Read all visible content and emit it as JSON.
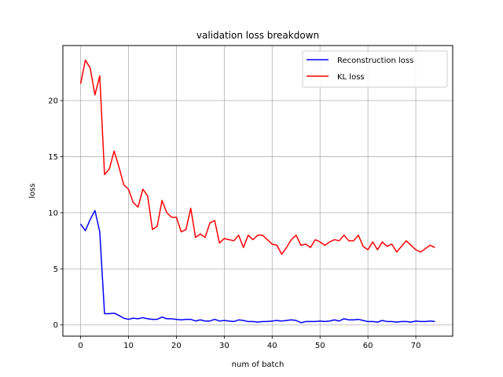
{
  "chart_data": {
    "type": "line",
    "title": "validation loss breakdown",
    "xlabel": "num of batch",
    "ylabel": "loss",
    "xlim": [
      -3.7,
      77.7
    ],
    "ylim": [
      -1.0,
      24.9
    ],
    "xticks": [
      0,
      10,
      20,
      30,
      40,
      50,
      60,
      70
    ],
    "yticks": [
      0,
      5,
      10,
      15,
      20
    ],
    "grid": true,
    "legend_position": "top-right",
    "series": [
      {
        "name": "Reconstruction loss",
        "color": "#0000ff",
        "x": [
          0,
          1,
          2,
          3,
          4,
          5,
          6,
          7,
          8,
          9,
          10,
          11,
          12,
          13,
          14,
          15,
          16,
          17,
          18,
          19,
          20,
          21,
          22,
          23,
          24,
          25,
          26,
          27,
          28,
          29,
          30,
          31,
          32,
          33,
          34,
          35,
          36,
          37,
          38,
          39,
          40,
          41,
          42,
          43,
          44,
          45,
          46,
          47,
          48,
          49,
          50,
          51,
          52,
          53,
          54,
          55,
          56,
          57,
          58,
          59,
          60,
          61,
          62,
          63,
          64,
          65,
          66,
          67,
          68,
          69,
          70,
          71,
          72,
          73,
          74
        ],
        "values": [
          9.0,
          8.4,
          9.4,
          10.2,
          8.3,
          1.0,
          1.0,
          1.05,
          0.85,
          0.6,
          0.5,
          0.6,
          0.55,
          0.65,
          0.55,
          0.5,
          0.5,
          0.7,
          0.55,
          0.55,
          0.5,
          0.45,
          0.5,
          0.5,
          0.35,
          0.45,
          0.35,
          0.35,
          0.5,
          0.35,
          0.4,
          0.35,
          0.3,
          0.45,
          0.4,
          0.3,
          0.3,
          0.25,
          0.3,
          0.3,
          0.35,
          0.4,
          0.35,
          0.4,
          0.45,
          0.4,
          0.2,
          0.3,
          0.3,
          0.3,
          0.35,
          0.3,
          0.35,
          0.45,
          0.35,
          0.55,
          0.45,
          0.45,
          0.5,
          0.4,
          0.3,
          0.3,
          0.25,
          0.4,
          0.3,
          0.3,
          0.25,
          0.3,
          0.3,
          0.25,
          0.35,
          0.3,
          0.3,
          0.35,
          0.3
        ]
      },
      {
        "name": "KL loss",
        "color": "#ff0000",
        "x": [
          0,
          1,
          2,
          3,
          4,
          5,
          6,
          7,
          8,
          9,
          10,
          11,
          12,
          13,
          14,
          15,
          16,
          17,
          18,
          19,
          20,
          21,
          22,
          23,
          24,
          25,
          26,
          27,
          28,
          29,
          30,
          31,
          32,
          33,
          34,
          35,
          36,
          37,
          38,
          39,
          40,
          41,
          42,
          43,
          44,
          45,
          46,
          47,
          48,
          49,
          50,
          51,
          52,
          53,
          54,
          55,
          56,
          57,
          58,
          59,
          60,
          61,
          62,
          63,
          64,
          65,
          66,
          67,
          68,
          69,
          70,
          71,
          72,
          73,
          74
        ],
        "values": [
          21.5,
          23.6,
          22.9,
          20.5,
          22.2,
          13.4,
          13.9,
          15.5,
          14.1,
          12.5,
          12.1,
          10.9,
          10.5,
          12.1,
          11.5,
          8.5,
          8.8,
          11.1,
          10.0,
          9.6,
          9.6,
          8.3,
          8.5,
          10.4,
          7.8,
          8.1,
          7.8,
          9.1,
          9.3,
          7.3,
          7.7,
          7.6,
          7.5,
          8.0,
          6.9,
          8.0,
          7.6,
          8.0,
          8.0,
          7.6,
          7.2,
          7.1,
          6.3,
          6.9,
          7.6,
          8.0,
          7.1,
          7.2,
          6.9,
          7.6,
          7.4,
          7.1,
          7.4,
          7.6,
          7.5,
          8.0,
          7.5,
          7.5,
          8.0,
          7.0,
          6.7,
          7.4,
          6.7,
          7.4,
          7.0,
          7.2,
          6.5,
          7.0,
          7.5,
          7.1,
          6.7,
          6.5,
          6.8,
          7.1,
          6.9
        ]
      }
    ]
  }
}
